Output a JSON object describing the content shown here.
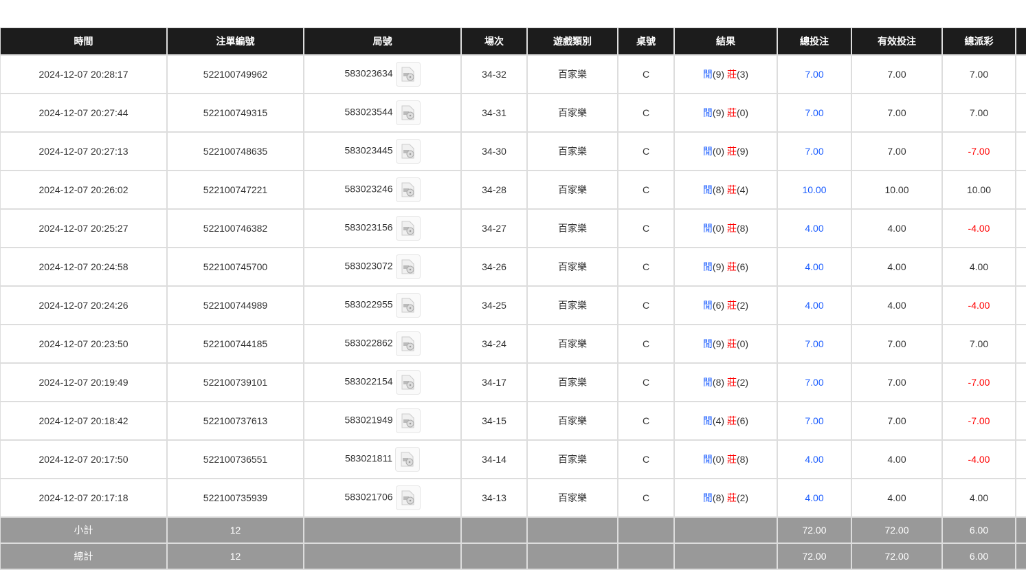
{
  "columns": [
    "時間",
    "注單編號",
    "局號",
    "場次",
    "遊戲類別",
    "桌號",
    "結果",
    "總投注",
    "有效投注",
    "總派彩",
    ""
  ],
  "colors": {
    "header_bg": "#1c1c1c",
    "blue": "#1a5cff",
    "red": "#ff0000",
    "summary_bg": "#999999"
  },
  "rows": [
    {
      "time": "2024-12-07 20:28:17",
      "bet_id": "522100749962",
      "round": "583023634",
      "shoe": "34-32",
      "game": "百家樂",
      "table": "C",
      "p_label": "閒",
      "p": "(9)",
      "b_label": "莊",
      "b": "(3)",
      "total": "7.00",
      "valid": "7.00",
      "payout": "7.00",
      "neg": false
    },
    {
      "time": "2024-12-07 20:27:44",
      "bet_id": "522100749315",
      "round": "583023544",
      "shoe": "34-31",
      "game": "百家樂",
      "table": "C",
      "p_label": "閒",
      "p": "(9)",
      "b_label": "莊",
      "b": "(0)",
      "total": "7.00",
      "valid": "7.00",
      "payout": "7.00",
      "neg": false
    },
    {
      "time": "2024-12-07 20:27:13",
      "bet_id": "522100748635",
      "round": "583023445",
      "shoe": "34-30",
      "game": "百家樂",
      "table": "C",
      "p_label": "閒",
      "p": "(0)",
      "b_label": "莊",
      "b": "(9)",
      "total": "7.00",
      "valid": "7.00",
      "payout": "-7.00",
      "neg": true
    },
    {
      "time": "2024-12-07 20:26:02",
      "bet_id": "522100747221",
      "round": "583023246",
      "shoe": "34-28",
      "game": "百家樂",
      "table": "C",
      "p_label": "閒",
      "p": "(8)",
      "b_label": "莊",
      "b": "(4)",
      "total": "10.00",
      "valid": "10.00",
      "payout": "10.00",
      "neg": false
    },
    {
      "time": "2024-12-07 20:25:27",
      "bet_id": "522100746382",
      "round": "583023156",
      "shoe": "34-27",
      "game": "百家樂",
      "table": "C",
      "p_label": "閒",
      "p": "(0)",
      "b_label": "莊",
      "b": "(8)",
      "total": "4.00",
      "valid": "4.00",
      "payout": "-4.00",
      "neg": true
    },
    {
      "time": "2024-12-07 20:24:58",
      "bet_id": "522100745700",
      "round": "583023072",
      "shoe": "34-26",
      "game": "百家樂",
      "table": "C",
      "p_label": "閒",
      "p": "(9)",
      "b_label": "莊",
      "b": "(6)",
      "total": "4.00",
      "valid": "4.00",
      "payout": "4.00",
      "neg": false
    },
    {
      "time": "2024-12-07 20:24:26",
      "bet_id": "522100744989",
      "round": "583022955",
      "shoe": "34-25",
      "game": "百家樂",
      "table": "C",
      "p_label": "閒",
      "p": "(6)",
      "b_label": "莊",
      "b": "(2)",
      "total": "4.00",
      "valid": "4.00",
      "payout": "-4.00",
      "neg": true
    },
    {
      "time": "2024-12-07 20:23:50",
      "bet_id": "522100744185",
      "round": "583022862",
      "shoe": "34-24",
      "game": "百家樂",
      "table": "C",
      "p_label": "閒",
      "p": "(9)",
      "b_label": "莊",
      "b": "(0)",
      "total": "7.00",
      "valid": "7.00",
      "payout": "7.00",
      "neg": false
    },
    {
      "time": "2024-12-07 20:19:49",
      "bet_id": "522100739101",
      "round": "583022154",
      "shoe": "34-17",
      "game": "百家樂",
      "table": "C",
      "p_label": "閒",
      "p": "(8)",
      "b_label": "莊",
      "b": "(2)",
      "total": "7.00",
      "valid": "7.00",
      "payout": "-7.00",
      "neg": true
    },
    {
      "time": "2024-12-07 20:18:42",
      "bet_id": "522100737613",
      "round": "583021949",
      "shoe": "34-15",
      "game": "百家樂",
      "table": "C",
      "p_label": "閒",
      "p": "(4)",
      "b_label": "莊",
      "b": "(6)",
      "total": "7.00",
      "valid": "7.00",
      "payout": "-7.00",
      "neg": true
    },
    {
      "time": "2024-12-07 20:17:50",
      "bet_id": "522100736551",
      "round": "583021811",
      "shoe": "34-14",
      "game": "百家樂",
      "table": "C",
      "p_label": "閒",
      "p": "(0)",
      "b_label": "莊",
      "b": "(8)",
      "total": "4.00",
      "valid": "4.00",
      "payout": "-4.00",
      "neg": true
    },
    {
      "time": "2024-12-07 20:17:18",
      "bet_id": "522100735939",
      "round": "583021706",
      "shoe": "34-13",
      "game": "百家樂",
      "table": "C",
      "p_label": "閒",
      "p": "(8)",
      "b_label": "莊",
      "b": "(2)",
      "total": "4.00",
      "valid": "4.00",
      "payout": "4.00",
      "neg": false
    }
  ],
  "summary": [
    {
      "label": "小計",
      "count": "12",
      "total": "72.00",
      "valid": "72.00",
      "payout": "6.00"
    },
    {
      "label": "總計",
      "count": "12",
      "total": "72.00",
      "valid": "72.00",
      "payout": "6.00"
    }
  ],
  "icons": {
    "replay": "video-replay-icon"
  }
}
